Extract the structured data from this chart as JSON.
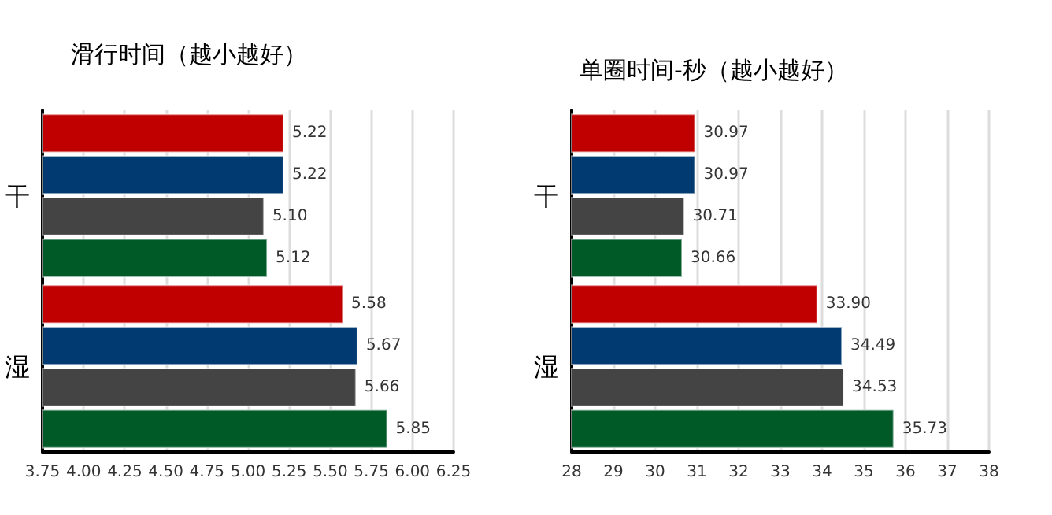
{
  "chart_data": [
    {
      "type": "bar",
      "orientation": "horizontal",
      "title": "滑行时间（越小越好）",
      "categories": [
        "干",
        "湿"
      ],
      "grid": "x",
      "xlim": [
        3.75,
        6.25
      ],
      "xticks": [
        3.75,
        {
          "value": 4,
          "label": "4.00"
        },
        4.25,
        {
          "value": 4.5,
          "label": "4.50"
        },
        4.75,
        {
          "value": 5,
          "label": "5.00"
        },
        5.25,
        {
          "value": 5.5,
          "label": "5.50"
        },
        5.75,
        {
          "value": 6,
          "label": "6.00"
        },
        6.25
      ],
      "series": [
        {
          "color": "#c00000",
          "values": [
            5.22,
            5.58
          ],
          "value_labels": [
            "5.22",
            "5.58"
          ]
        },
        {
          "color": "#003a70",
          "values": [
            5.22,
            5.67
          ],
          "value_labels": [
            "5.22",
            "5.67"
          ]
        },
        {
          "color": "#444444",
          "values": [
            5.1,
            5.66
          ],
          "value_labels": [
            "5.10",
            "5.66"
          ]
        },
        {
          "color": "#005a28",
          "values": [
            5.12,
            5.85
          ],
          "value_labels": [
            "5.12",
            "5.85"
          ]
        }
      ]
    },
    {
      "type": "bar",
      "orientation": "horizontal",
      "title": "单圈时间-秒（越小越好）",
      "categories": [
        "干",
        "湿"
      ],
      "grid": "x",
      "xlim": [
        28,
        38
      ],
      "xticks": [
        28,
        29,
        30,
        31,
        32,
        33,
        34,
        35,
        36,
        37,
        38
      ],
      "series": [
        {
          "color": "#c00000",
          "values": [
            30.97,
            33.9
          ],
          "value_labels": [
            "30.97",
            "33.90"
          ]
        },
        {
          "color": "#003a70",
          "values": [
            30.97,
            34.49
          ],
          "value_labels": [
            "30.97",
            "34.49"
          ]
        },
        {
          "color": "#444444",
          "values": [
            30.71,
            34.53
          ],
          "value_labels": [
            "30.71",
            "34.53"
          ]
        },
        {
          "color": "#005a28",
          "values": [
            30.66,
            35.73
          ],
          "value_labels": [
            "30.66",
            "35.73"
          ]
        }
      ]
    }
  ]
}
